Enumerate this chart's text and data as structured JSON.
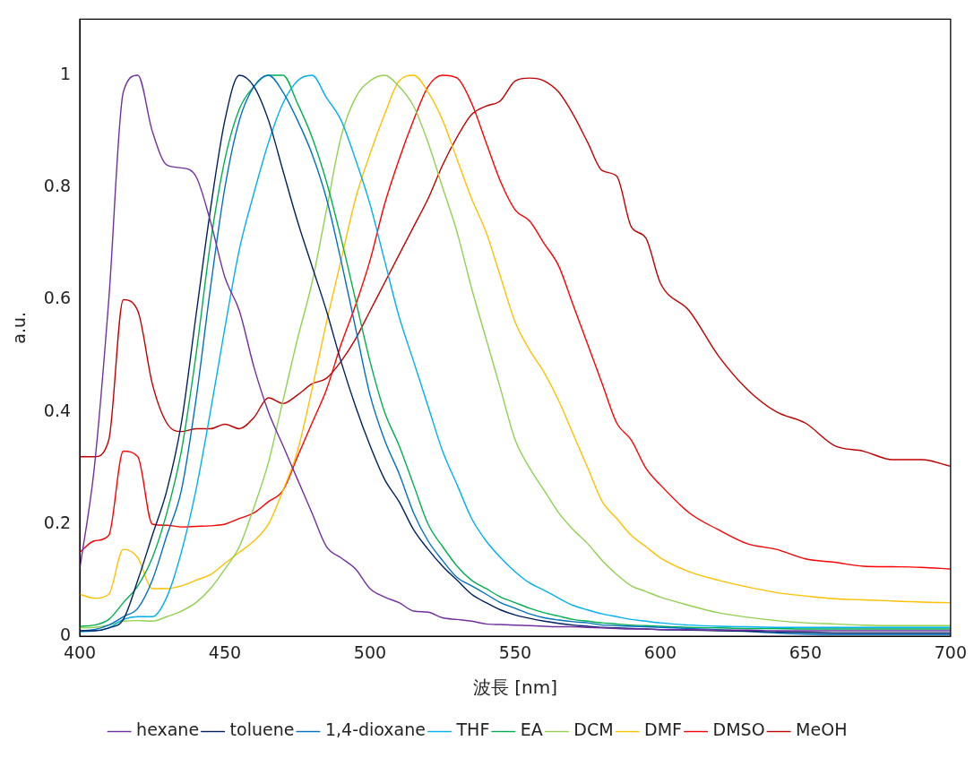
{
  "chart_data": {
    "type": "line",
    "xlabel": "波長 [nm]",
    "ylabel": "a.u.",
    "legend": "bottom",
    "line_style": "solid",
    "xlim": [
      400,
      700
    ],
    "ylim": [
      0,
      1.1
    ],
    "xticks": [
      400,
      450,
      500,
      550,
      600,
      650,
      700
    ],
    "yticks": [
      0,
      0.2,
      0.4,
      0.6,
      0.8,
      1
    ],
    "x": [
      400,
      405,
      410,
      415,
      420,
      425,
      430,
      435,
      440,
      445,
      450,
      455,
      460,
      465,
      470,
      475,
      480,
      485,
      490,
      495,
      500,
      505,
      510,
      515,
      520,
      525,
      530,
      535,
      540,
      545,
      550,
      555,
      560,
      565,
      570,
      575,
      580,
      585,
      590,
      595,
      600,
      610,
      620,
      630,
      640,
      650,
      660,
      670,
      680,
      690,
      700
    ],
    "series": [
      {
        "name": "hexane",
        "color": "#7030a0",
        "values": [
          0.12,
          0.3,
          0.6,
          0.97,
          1.0,
          0.9,
          0.84,
          0.835,
          0.82,
          0.74,
          0.64,
          0.58,
          0.48,
          0.4,
          0.34,
          0.28,
          0.22,
          0.16,
          0.14,
          0.12,
          0.085,
          0.07,
          0.06,
          0.045,
          0.043,
          0.033,
          0.03,
          0.027,
          0.022,
          0.021,
          0.02,
          0.019,
          0.018,
          0.017,
          0.017,
          0.016,
          0.015,
          0.014,
          0.013,
          0.013,
          0.012,
          0.012,
          0.011,
          0.011,
          0.01,
          0.01,
          0.01,
          0.01,
          0.01,
          0.01,
          0.01
        ]
      },
      {
        "name": "toluene",
        "color": "#002060",
        "values": [
          0.01,
          0.01,
          0.015,
          0.03,
          0.1,
          0.18,
          0.26,
          0.38,
          0.57,
          0.76,
          0.92,
          1.0,
          0.98,
          0.92,
          0.83,
          0.74,
          0.66,
          0.58,
          0.49,
          0.41,
          0.34,
          0.28,
          0.24,
          0.19,
          0.155,
          0.125,
          0.1,
          0.075,
          0.06,
          0.047,
          0.038,
          0.032,
          0.027,
          0.023,
          0.02,
          0.018,
          0.016,
          0.015,
          0.014,
          0.013,
          0.012,
          0.011,
          0.01,
          0.009,
          0.008,
          0.007,
          0.006,
          0.006,
          0.006,
          0.006,
          0.006
        ]
      },
      {
        "name": "1,4-dioxane",
        "color": "#0070c0",
        "values": [
          0.01,
          0.012,
          0.02,
          0.035,
          0.05,
          0.1,
          0.18,
          0.26,
          0.42,
          0.62,
          0.8,
          0.92,
          0.98,
          1.0,
          0.97,
          0.92,
          0.86,
          0.78,
          0.67,
          0.55,
          0.43,
          0.35,
          0.29,
          0.22,
          0.17,
          0.135,
          0.105,
          0.09,
          0.075,
          0.06,
          0.05,
          0.04,
          0.033,
          0.029,
          0.026,
          0.024,
          0.02,
          0.019,
          0.018,
          0.017,
          0.016,
          0.014,
          0.012,
          0.009,
          0.006,
          0.004,
          0.003,
          0.003,
          0.003,
          0.003,
          0.003
        ]
      },
      {
        "name": "THF",
        "color": "#00b0f0",
        "values": [
          0.008,
          0.01,
          0.015,
          0.03,
          0.035,
          0.035,
          0.07,
          0.15,
          0.26,
          0.4,
          0.55,
          0.69,
          0.79,
          0.88,
          0.95,
          0.99,
          1.0,
          0.96,
          0.92,
          0.85,
          0.77,
          0.67,
          0.57,
          0.49,
          0.41,
          0.33,
          0.27,
          0.21,
          0.17,
          0.14,
          0.115,
          0.095,
          0.082,
          0.068,
          0.055,
          0.047,
          0.04,
          0.035,
          0.03,
          0.027,
          0.024,
          0.02,
          0.018,
          0.017,
          0.016,
          0.016,
          0.016,
          0.016,
          0.016,
          0.016,
          0.016
        ]
      },
      {
        "name": "EA",
        "color": "#00b050",
        "values": [
          0.018,
          0.02,
          0.03,
          0.06,
          0.09,
          0.14,
          0.22,
          0.33,
          0.5,
          0.7,
          0.85,
          0.94,
          0.98,
          1.0,
          1.0,
          0.95,
          0.89,
          0.81,
          0.71,
          0.6,
          0.49,
          0.4,
          0.34,
          0.27,
          0.2,
          0.16,
          0.125,
          0.1,
          0.085,
          0.07,
          0.06,
          0.05,
          0.042,
          0.036,
          0.03,
          0.027,
          0.024,
          0.022,
          0.02,
          0.019,
          0.018,
          0.016,
          0.015,
          0.014,
          0.014,
          0.013,
          0.013,
          0.013,
          0.013,
          0.013,
          0.013
        ]
      },
      {
        "name": "DCM",
        "color": "#92d050",
        "values": [
          0.015,
          0.016,
          0.02,
          0.027,
          0.028,
          0.027,
          0.035,
          0.045,
          0.06,
          0.085,
          0.12,
          0.16,
          0.23,
          0.31,
          0.42,
          0.53,
          0.63,
          0.76,
          0.89,
          0.96,
          0.99,
          1.0,
          0.98,
          0.945,
          0.88,
          0.8,
          0.72,
          0.62,
          0.53,
          0.44,
          0.35,
          0.3,
          0.26,
          0.22,
          0.19,
          0.165,
          0.135,
          0.11,
          0.09,
          0.08,
          0.07,
          0.055,
          0.042,
          0.034,
          0.028,
          0.024,
          0.022,
          0.02,
          0.019,
          0.019,
          0.019
        ]
      },
      {
        "name": "DMF",
        "color": "#ffc000",
        "values": [
          0.075,
          0.068,
          0.075,
          0.155,
          0.14,
          0.085,
          0.085,
          0.09,
          0.1,
          0.11,
          0.13,
          0.15,
          0.17,
          0.2,
          0.26,
          0.33,
          0.44,
          0.56,
          0.67,
          0.78,
          0.86,
          0.93,
          0.99,
          1.0,
          0.97,
          0.92,
          0.85,
          0.78,
          0.72,
          0.64,
          0.56,
          0.51,
          0.47,
          0.42,
          0.36,
          0.3,
          0.24,
          0.21,
          0.18,
          0.16,
          0.14,
          0.115,
          0.1,
          0.088,
          0.078,
          0.072,
          0.067,
          0.065,
          0.063,
          0.061,
          0.06
        ]
      },
      {
        "name": "DMSO",
        "color": "#ff0000",
        "values": [
          0.15,
          0.17,
          0.18,
          0.33,
          0.32,
          0.2,
          0.198,
          0.195,
          0.196,
          0.197,
          0.2,
          0.21,
          0.22,
          0.24,
          0.26,
          0.32,
          0.38,
          0.44,
          0.52,
          0.59,
          0.67,
          0.77,
          0.85,
          0.92,
          0.98,
          1.0,
          0.995,
          0.95,
          0.88,
          0.81,
          0.76,
          0.74,
          0.7,
          0.66,
          0.59,
          0.52,
          0.45,
          0.38,
          0.35,
          0.3,
          0.27,
          0.22,
          0.19,
          0.165,
          0.155,
          0.138,
          0.132,
          0.125,
          0.124,
          0.123,
          0.12
        ]
      },
      {
        "name": "MeOH",
        "color": "#c00000",
        "values": [
          0.32,
          0.32,
          0.35,
          0.6,
          0.58,
          0.45,
          0.38,
          0.365,
          0.37,
          0.37,
          0.378,
          0.37,
          0.39,
          0.425,
          0.415,
          0.43,
          0.45,
          0.46,
          0.49,
          0.53,
          0.58,
          0.63,
          0.68,
          0.73,
          0.78,
          0.84,
          0.89,
          0.93,
          0.945,
          0.955,
          0.99,
          0.995,
          0.99,
          0.97,
          0.93,
          0.88,
          0.83,
          0.82,
          0.73,
          0.71,
          0.63,
          0.58,
          0.5,
          0.44,
          0.4,
          0.38,
          0.34,
          0.33,
          0.315,
          0.315,
          0.303
        ]
      }
    ]
  }
}
